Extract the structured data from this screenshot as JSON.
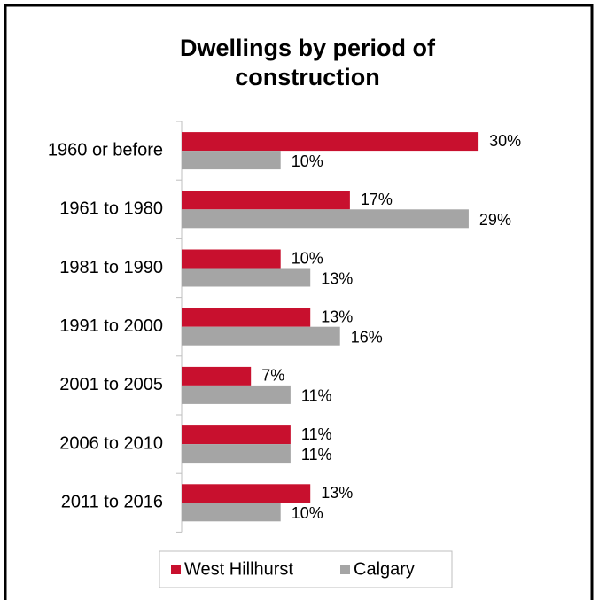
{
  "chart_data": {
    "type": "bar",
    "orientation": "horizontal",
    "title": [
      "Dwellings by period of",
      "construction"
    ],
    "categories": [
      "1960 or before",
      "1961 to 1980",
      "1981 to 1990",
      "1991 to 2000",
      "2001 to 2005",
      "2006 to 2010",
      "2011 to 2016"
    ],
    "series": [
      {
        "name": "West Hillhurst",
        "color": "#c8102e",
        "values": [
          30,
          17,
          10,
          13,
          7,
          11,
          13
        ],
        "value_labels": [
          "30%",
          "17%",
          "10%",
          "13%",
          "7%",
          "11%",
          "13%"
        ]
      },
      {
        "name": "Calgary",
        "color": "#a5a5a5",
        "values": [
          10,
          29,
          13,
          16,
          11,
          11,
          10
        ],
        "value_labels": [
          "10%",
          "29%",
          "13%",
          "16%",
          "11%",
          "11%",
          "10%"
        ]
      }
    ],
    "legend": "bottom"
  }
}
